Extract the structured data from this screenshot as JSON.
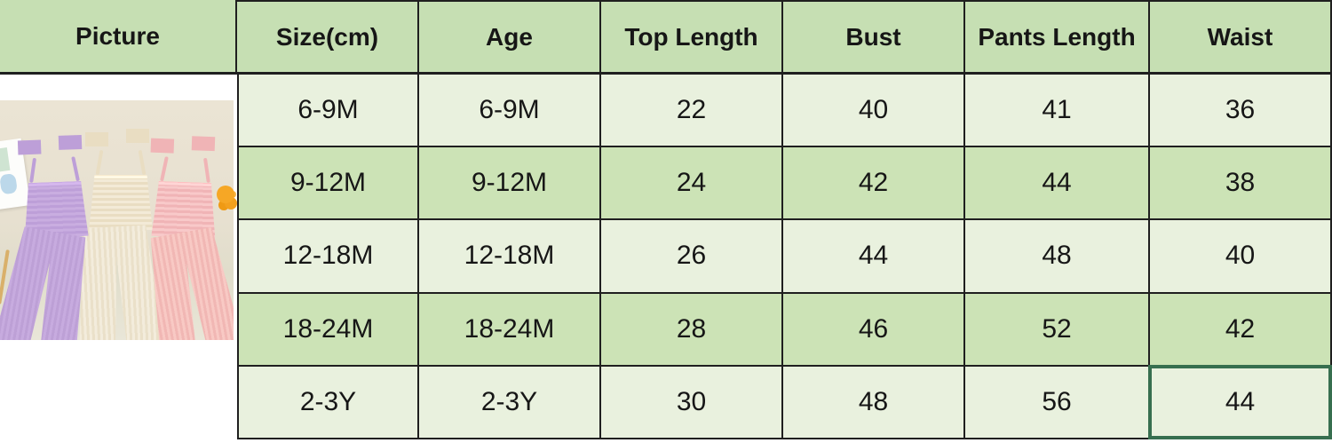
{
  "colors": {
    "header_bg": "#c6dfb3",
    "row_odd_bg": "#e9f1de",
    "row_even_bg": "#cce3b6",
    "grid_border": "#1f1f1f",
    "selected_border": "#376f4f",
    "text": "#161616",
    "photo_wall": "#e8e1d1"
  },
  "size_chart": {
    "columns": [
      "Picture",
      "Size(cm)",
      "Age",
      "Top Length",
      "Bust",
      "Pants Length",
      "Waist"
    ],
    "rows": [
      {
        "size": "6-9M",
        "age": "6-9M",
        "top_length": "22",
        "bust": "40",
        "pants_length": "41",
        "waist": "36"
      },
      {
        "size": "9-12M",
        "age": "9-12M",
        "top_length": "24",
        "bust": "42",
        "pants_length": "44",
        "waist": "38"
      },
      {
        "size": "12-18M",
        "age": "12-18M",
        "top_length": "26",
        "bust": "44",
        "pants_length": "48",
        "waist": "40"
      },
      {
        "size": "18-24M",
        "age": "18-24M",
        "top_length": "28",
        "bust": "46",
        "pants_length": "52",
        "waist": "42"
      },
      {
        "size": "2-3Y",
        "age": "2-3Y",
        "top_length": "30",
        "bust": "48",
        "pants_length": "56",
        "waist": "44"
      }
    ],
    "selected_cell": {
      "row": "2-3Y",
      "column": "Waist",
      "value": "44"
    }
  },
  "product_photo": {
    "description": "Three toddler outfits hanging on a beige wall: smocked tie-shoulder cami tops with matching flared ribbed pants in lavender, cream and pink; small art card on the left, orange pom flower at right",
    "outfit_colors": [
      "#c7abdf",
      "#f3ecdc",
      "#f8c9c4"
    ],
    "wall_color": "#e8e1d1",
    "accent_flower_color": "#f6a725"
  }
}
